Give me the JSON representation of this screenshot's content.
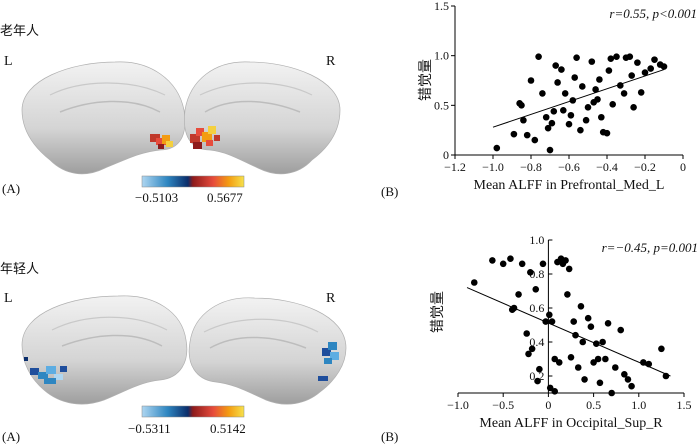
{
  "panels": {
    "top": {
      "group_label": "老年人",
      "hemi_left": "L",
      "hemi_right": "R",
      "panel_a_letter": "(A)",
      "panel_b_letter": "(B)",
      "colorbar": {
        "min_label": "−0.5103",
        "max_label": "0.5677"
      },
      "colors": {
        "warm": [
          "#f4d03f",
          "#f39c12",
          "#e74c3c",
          "#c0392b",
          "#8e1b1b"
        ]
      }
    },
    "bottom": {
      "group_label": "年轻人",
      "hemi_left": "L",
      "hemi_right": "R",
      "panel_a_letter": "(A)",
      "panel_b_letter": "(B)",
      "colorbar": {
        "min_label": "−0.5311",
        "max_label": "0.5142"
      },
      "colors": {
        "cool": [
          "#aed6f1",
          "#5dade2",
          "#2e86c1",
          "#1f4e9c",
          "#0b2e6b"
        ]
      }
    }
  },
  "chart_data": [
    {
      "type": "scatter",
      "title": "",
      "xlabel": "Mean ALFF in Prefrontal_Med_L",
      "ylabel": "错觉量",
      "annotation": "r=0.55, p<0.001",
      "xlim": [
        -1.2,
        0
      ],
      "ylim": [
        0,
        1.5
      ],
      "xticks": [
        -1.2,
        -1.0,
        -0.8,
        -0.6,
        -0.4,
        -0.2,
        0
      ],
      "xtick_labels": [
        "−1.2",
        "−1.0",
        "−0.8",
        "−0.6",
        "−0.4",
        "−0.2",
        "0"
      ],
      "yticks": [
        0,
        0.5,
        1.0,
        1.5
      ],
      "ytick_labels": [
        "0",
        "0.5",
        "1.0",
        "1.5"
      ],
      "fit_line": {
        "x": [
          -1.0,
          -0.1
        ],
        "y": [
          0.28,
          0.86
        ]
      },
      "points": [
        [
          -0.98,
          0.07
        ],
        [
          -0.89,
          0.21
        ],
        [
          -0.84,
          0.35
        ],
        [
          -0.82,
          0.2
        ],
        [
          -0.78,
          0.15
        ],
        [
          -0.86,
          0.52
        ],
        [
          -0.85,
          0.5
        ],
        [
          -0.8,
          0.75
        ],
        [
          -0.76,
          0.99
        ],
        [
          -0.74,
          0.62
        ],
        [
          -0.72,
          0.38
        ],
        [
          -0.71,
          0.27
        ],
        [
          -0.7,
          0.05
        ],
        [
          -0.68,
          0.44
        ],
        [
          -0.67,
          0.9
        ],
        [
          -0.66,
          0.73
        ],
        [
          -0.63,
          0.45
        ],
        [
          -0.62,
          0.62
        ],
        [
          -0.6,
          0.31
        ],
        [
          -0.59,
          0.4
        ],
        [
          -0.58,
          0.55
        ],
        [
          -0.57,
          0.78
        ],
        [
          -0.56,
          0.98
        ],
        [
          -0.54,
          0.25
        ],
        [
          -0.53,
          0.69
        ],
        [
          -0.51,
          0.35
        ],
        [
          -0.5,
          0.48
        ],
        [
          -0.48,
          0.94
        ],
        [
          -0.46,
          0.66
        ],
        [
          -0.45,
          0.56
        ],
        [
          -0.43,
          0.38
        ],
        [
          -0.42,
          0.23
        ],
        [
          -0.4,
          0.22
        ],
        [
          -0.39,
          0.85
        ],
        [
          -0.38,
          0.97
        ],
        [
          -0.37,
          0.51
        ],
        [
          -0.35,
          0.99
        ],
        [
          -0.33,
          0.7
        ],
        [
          -0.31,
          0.62
        ],
        [
          -0.3,
          0.98
        ],
        [
          -0.28,
          0.99
        ],
        [
          -0.26,
          0.48
        ],
        [
          -0.24,
          0.93
        ],
        [
          -0.22,
          0.63
        ],
        [
          -0.2,
          0.83
        ],
        [
          -0.17,
          0.87
        ],
        [
          -0.15,
          0.96
        ],
        [
          -0.12,
          0.91
        ],
        [
          -0.1,
          0.89
        ],
        [
          -0.27,
          0.8
        ],
        [
          -0.44,
          0.76
        ],
        [
          -0.47,
          0.53
        ],
        [
          -0.64,
          0.86
        ],
        [
          -0.69,
          0.32
        ]
      ]
    },
    {
      "type": "scatter",
      "title": "",
      "xlabel": "Mean ALFF in Occipital_Sup_R",
      "ylabel": "错觉量",
      "annotation": "r=−0.45, p=0.001",
      "xlim": [
        -1,
        1.5
      ],
      "ylim": [
        0.1,
        1.0
      ],
      "xticks": [
        -1,
        -0.5,
        0,
        0.5,
        1.0,
        1.5
      ],
      "xtick_labels": [
        "−1.0",
        "−0.5",
        "0",
        "0.5",
        "1.0",
        "1.5"
      ],
      "yticks": [
        0.2,
        0.4,
        0.6,
        0.8,
        1.0
      ],
      "ytick_labels": [
        "0.2",
        "0.4",
        "0.6",
        "0.8",
        "1.0"
      ],
      "fit_line": {
        "x": [
          -0.9,
          1.35
        ],
        "y": [
          0.72,
          0.2
        ]
      },
      "points": [
        [
          -0.82,
          0.75
        ],
        [
          -0.62,
          0.88
        ],
        [
          -0.5,
          0.86
        ],
        [
          -0.42,
          0.89
        ],
        [
          -0.4,
          0.59
        ],
        [
          -0.38,
          0.6
        ],
        [
          -0.33,
          0.68
        ],
        [
          -0.29,
          0.86
        ],
        [
          -0.24,
          0.45
        ],
        [
          -0.22,
          0.33
        ],
        [
          -0.2,
          0.81
        ],
        [
          -0.18,
          0.36
        ],
        [
          -0.14,
          0.71
        ],
        [
          -0.12,
          0.17
        ],
        [
          -0.1,
          0.24
        ],
        [
          -0.06,
          0.86
        ],
        [
          -0.03,
          0.52
        ],
        [
          0.01,
          0.56
        ],
        [
          0.04,
          0.52
        ],
        [
          0.07,
          0.3
        ],
        [
          0.1,
          0.87
        ],
        [
          0.12,
          0.28
        ],
        [
          0.14,
          0.89
        ],
        [
          0.16,
          0.86
        ],
        [
          0.19,
          0.88
        ],
        [
          0.21,
          0.68
        ],
        [
          0.23,
          0.83
        ],
        [
          0.25,
          0.31
        ],
        [
          0.28,
          0.52
        ],
        [
          0.3,
          0.44
        ],
        [
          0.33,
          0.25
        ],
        [
          0.36,
          0.61
        ],
        [
          0.38,
          0.4
        ],
        [
          0.4,
          0.18
        ],
        [
          0.44,
          0.54
        ],
        [
          0.47,
          0.49
        ],
        [
          0.5,
          0.28
        ],
        [
          0.53,
          0.39
        ],
        [
          0.57,
          0.16
        ],
        [
          0.6,
          0.4
        ],
        [
          0.63,
          0.3
        ],
        [
          0.66,
          0.51
        ],
        [
          0.7,
          0.1
        ],
        [
          0.74,
          0.25
        ],
        [
          0.8,
          0.47
        ],
        [
          0.84,
          0.21
        ],
        [
          0.88,
          0.18
        ],
        [
          0.92,
          0.14
        ],
        [
          1.05,
          0.28
        ],
        [
          1.11,
          0.27
        ],
        [
          1.25,
          0.36
        ],
        [
          1.3,
          0.2
        ],
        [
          0.55,
          0.3
        ],
        [
          0.02,
          0.13
        ],
        [
          0.07,
          0.11
        ]
      ]
    }
  ]
}
